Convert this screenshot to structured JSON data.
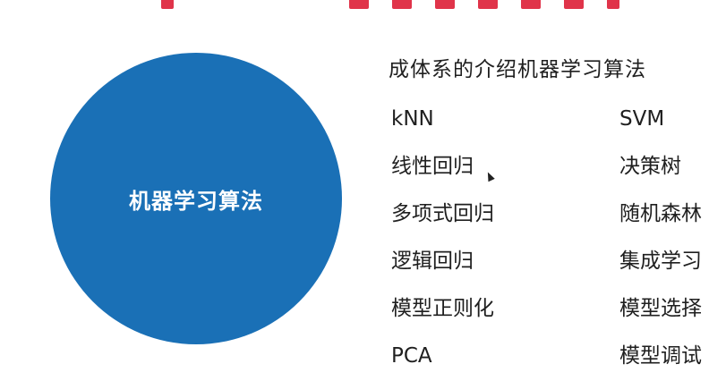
{
  "circle": {
    "label": "机器学习算法"
  },
  "subtitle": "成体系的介绍机器学习算法",
  "algorithms_left": [
    "kNN",
    "线性回归",
    "多项式回归",
    "逻辑回归",
    "模型正则化",
    "PCA"
  ],
  "algorithms_right": [
    "SVM",
    "决策树",
    "随机森林",
    "集成学习",
    "模型选择",
    "模型调试"
  ],
  "colors": {
    "circle": "#1a70b6",
    "title_accent": "#e0344a",
    "text": "#1f1f1f"
  }
}
